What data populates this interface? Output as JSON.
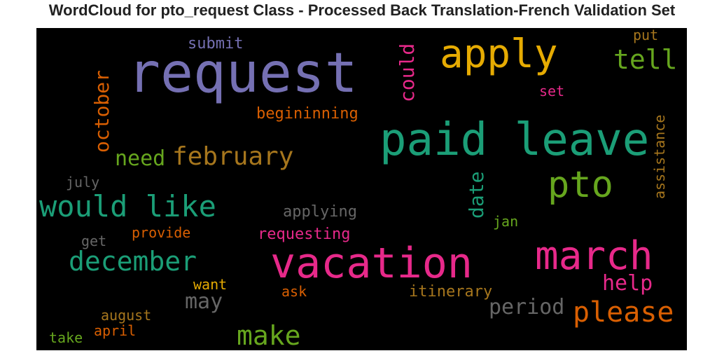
{
  "chart_data": {
    "type": "wordcloud",
    "title": "WordCloud for pto_request Class - Processed Back Translation-French Validation Set",
    "background": "#000000",
    "words": [
      {
        "text": "request",
        "color": "#7570b3",
        "orientation": "horizontal"
      },
      {
        "text": "apply",
        "color": "#e6ab02",
        "orientation": "horizontal"
      },
      {
        "text": "paid leave",
        "color": "#1b9e77",
        "orientation": "horizontal"
      },
      {
        "text": "vacation",
        "color": "#e7298a",
        "orientation": "horizontal"
      },
      {
        "text": "march",
        "color": "#e7298a",
        "orientation": "horizontal"
      },
      {
        "text": "pto",
        "color": "#66a61e",
        "orientation": "horizontal"
      },
      {
        "text": "would like",
        "color": "#1b9e77",
        "orientation": "horizontal"
      },
      {
        "text": "february",
        "color": "#a6761d",
        "orientation": "horizontal"
      },
      {
        "text": "december",
        "color": "#1b9e77",
        "orientation": "horizontal"
      },
      {
        "text": "please",
        "color": "#d95f02",
        "orientation": "horizontal"
      },
      {
        "text": "make",
        "color": "#66a61e",
        "orientation": "horizontal"
      },
      {
        "text": "tell",
        "color": "#66a61e",
        "orientation": "horizontal"
      },
      {
        "text": "period",
        "color": "#666666",
        "orientation": "horizontal"
      },
      {
        "text": "help",
        "color": "#e7298a",
        "orientation": "horizontal"
      },
      {
        "text": "may",
        "color": "#666666",
        "orientation": "horizontal"
      },
      {
        "text": "october",
        "color": "#d95f02",
        "orientation": "vertical"
      },
      {
        "text": "could",
        "color": "#e7298a",
        "orientation": "vertical"
      },
      {
        "text": "date",
        "color": "#1b9e77",
        "orientation": "vertical"
      },
      {
        "text": "need",
        "color": "#66a61e",
        "orientation": "horizontal"
      },
      {
        "text": "submit",
        "color": "#7570b3",
        "orientation": "horizontal"
      },
      {
        "text": "put",
        "color": "#a6761d",
        "orientation": "horizontal"
      },
      {
        "text": "set",
        "color": "#e7298a",
        "orientation": "horizontal"
      },
      {
        "text": "begininning",
        "color": "#d95f02",
        "orientation": "horizontal"
      },
      {
        "text": "assistance",
        "color": "#a6761d",
        "orientation": "vertical"
      },
      {
        "text": "july",
        "color": "#666666",
        "orientation": "horizontal"
      },
      {
        "text": "applying",
        "color": "#666666",
        "orientation": "horizontal"
      },
      {
        "text": "jan",
        "color": "#66a61e",
        "orientation": "horizontal"
      },
      {
        "text": "provide",
        "color": "#d95f02",
        "orientation": "horizontal"
      },
      {
        "text": "requesting",
        "color": "#e7298a",
        "orientation": "horizontal"
      },
      {
        "text": "get",
        "color": "#666666",
        "orientation": "horizontal"
      },
      {
        "text": "want",
        "color": "#e6ab02",
        "orientation": "horizontal"
      },
      {
        "text": "ask",
        "color": "#d95f02",
        "orientation": "horizontal"
      },
      {
        "text": "itinerary",
        "color": "#a6761d",
        "orientation": "horizontal"
      },
      {
        "text": "august",
        "color": "#a6761d",
        "orientation": "horizontal"
      },
      {
        "text": "april",
        "color": "#d95f02",
        "orientation": "horizontal"
      },
      {
        "text": "take",
        "color": "#66a61e",
        "orientation": "horizontal"
      }
    ]
  }
}
